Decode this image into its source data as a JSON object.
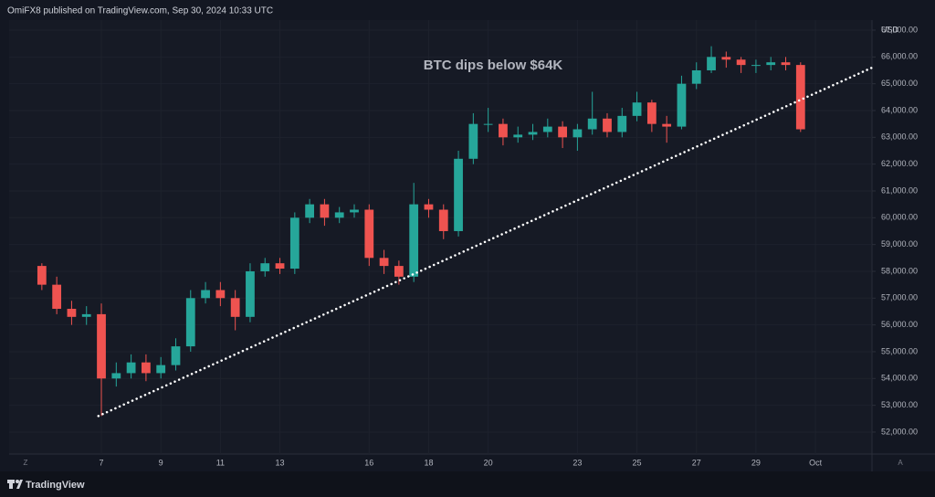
{
  "header": "OmiFX8 published on TradingView.com, Sep 30, 2024 10:33 UTC",
  "footer": {
    "brand": "TradingView"
  },
  "axis_buttons": [
    "Z",
    "A"
  ],
  "chart_data": {
    "type": "candlestick",
    "annotation": "BTC dips below $64K",
    "currency": "USD",
    "x": [
      5,
      5.5,
      6,
      6.5,
      7,
      7.5,
      8,
      8.5,
      9,
      9.5,
      10,
      10.5,
      11,
      11.5,
      12,
      12.5,
      13,
      13.5,
      14,
      14.5,
      15,
      15.5,
      16,
      16.5,
      17,
      17.5,
      18,
      18.5,
      19,
      19.5,
      20,
      20.5,
      21,
      21.5,
      22,
      22.5,
      23,
      23.5,
      24,
      24.5,
      25,
      25.5,
      26,
      26.5,
      27,
      27.5,
      28,
      28.5,
      29,
      29.5,
      30,
      30.5
    ],
    "open": [
      58200,
      57500,
      56600,
      56300,
      56400,
      54000,
      54200,
      54600,
      54200,
      54500,
      55200,
      57000,
      57300,
      57000,
      56300,
      58000,
      58300,
      58100,
      60000,
      60500,
      60000,
      60200,
      60300,
      58500,
      58200,
      57800,
      60500,
      60300,
      59500,
      62200,
      63500,
      63500,
      63000,
      63100,
      63200,
      63400,
      63000,
      63300,
      63700,
      63200,
      63800,
      64300,
      63500,
      63400,
      65000,
      65500,
      66000,
      65900,
      65700,
      65700,
      65800,
      65700
    ],
    "high": [
      58300,
      57800,
      56900,
      56700,
      56800,
      54600,
      54900,
      54900,
      54800,
      55500,
      57300,
      57600,
      57600,
      57300,
      58300,
      58500,
      58500,
      60200,
      60700,
      60700,
      60400,
      60500,
      60500,
      58800,
      58400,
      61300,
      60700,
      60500,
      62500,
      63900,
      64100,
      63700,
      63400,
      63500,
      63700,
      63600,
      63500,
      64700,
      63900,
      64100,
      64700,
      64400,
      63800,
      65300,
      65800,
      66400,
      66200,
      66000,
      65900,
      66000,
      66000,
      65800
    ],
    "low": [
      57300,
      56400,
      56000,
      56000,
      52600,
      53700,
      54000,
      53900,
      54000,
      54300,
      55000,
      56800,
      56700,
      55800,
      56100,
      57800,
      57900,
      57900,
      59800,
      59700,
      59800,
      60000,
      58200,
      57900,
      57500,
      57600,
      60000,
      59200,
      59300,
      62000,
      63200,
      62700,
      62800,
      62900,
      63000,
      62600,
      62500,
      63100,
      63000,
      63000,
      63600,
      63200,
      62800,
      63300,
      64800,
      65400,
      65600,
      65400,
      65400,
      65500,
      65500,
      63200
    ],
    "close": [
      57500,
      56600,
      56300,
      56400,
      54000,
      54200,
      54600,
      54200,
      54500,
      55200,
      57000,
      57300,
      57000,
      56300,
      58000,
      58300,
      58100,
      60000,
      60500,
      60000,
      60200,
      60300,
      58500,
      58200,
      57800,
      60500,
      60300,
      59500,
      62200,
      63500,
      63500,
      63000,
      63100,
      63200,
      63400,
      63000,
      63300,
      63700,
      63200,
      63800,
      64300,
      63500,
      63400,
      65000,
      65500,
      66000,
      65900,
      65700,
      65700,
      65800,
      65700,
      63300
    ],
    "up_color": "#26a69a",
    "down_color": "#ef5350",
    "trendline": {
      "x": [
        6.9,
        32.9
      ],
      "y": [
        52600,
        65600
      ],
      "color": "#ffffff"
    },
    "xlim": [
      3.9,
      32.9
    ],
    "xticks": [
      7,
      9,
      11,
      13,
      16,
      18,
      20,
      23,
      25,
      27,
      29,
      {
        "value": 31,
        "label": "Oct"
      }
    ],
    "ylim": [
      51180,
      67375
    ],
    "yticks": [
      {
        "value": 52000,
        "label": "52,000.00"
      },
      {
        "value": 53000,
        "label": "53,000.00"
      },
      {
        "value": 54000,
        "label": "54,000.00"
      },
      {
        "value": 55000,
        "label": "55,000.00"
      },
      {
        "value": 56000,
        "label": "56,000.00"
      },
      {
        "value": 57000,
        "label": "57,000.00"
      },
      {
        "value": 58000,
        "label": "58,000.00"
      },
      {
        "value": 59000,
        "label": "59,000.00"
      },
      {
        "value": 60000,
        "label": "60,000.00"
      },
      {
        "value": 61000,
        "label": "61,000.00"
      },
      {
        "value": 62000,
        "label": "62,000.00"
      },
      {
        "value": 63000,
        "label": "63,000.00"
      },
      {
        "value": 64000,
        "label": "64,000.00"
      },
      {
        "value": 65000,
        "label": "65,000.00"
      },
      {
        "value": 66000,
        "label": "66,000.00"
      },
      {
        "value": 67000,
        "label": "67,000.00"
      }
    ],
    "grid": true,
    "annotation_color": "#f5e642"
  }
}
